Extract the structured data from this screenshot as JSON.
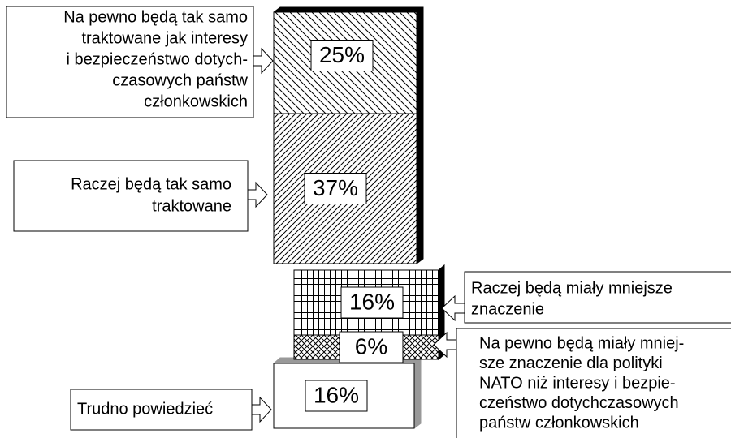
{
  "chart_data": {
    "type": "bar",
    "stacked": true,
    "categories": [
      [
        "Na pewno będą tak samo",
        "traktowane jak interesy",
        "i bezpieczeństwo dotych-",
        "czasowych państw",
        "członkowskich"
      ],
      [
        "Raczej będą tak samo",
        "traktowane"
      ],
      [
        "Raczej będą miały mniejsze",
        "znaczenie"
      ],
      [
        "Na pewno będą miały mniej-",
        "sze znaczenie dla polityki",
        "NATO niż interesy i bezpie-",
        "czeństwo dotychczasowych",
        "państw członkowskich"
      ],
      [
        "Trudno powiedzieć"
      ]
    ],
    "values": [
      25,
      37,
      16,
      6,
      16
    ],
    "value_labels": [
      "25%",
      "37%",
      "16%",
      "6%",
      "16%"
    ]
  }
}
